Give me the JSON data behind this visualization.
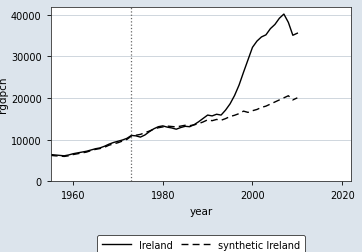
{
  "title": "",
  "xlabel": "year",
  "ylabel": "rgdpch",
  "xlim": [
    1955,
    2022
  ],
  "ylim": [
    0,
    42000
  ],
  "yticks": [
    0,
    10000,
    20000,
    30000,
    40000
  ],
  "xticks": [
    1960,
    1980,
    2000,
    2020
  ],
  "vline_x": 1973,
  "fig_background": "#dce4ec",
  "plot_background": "#ffffff",
  "grid_color": "#c8d0d8",
  "ireland_color": "#000000",
  "synthetic_color": "#000000",
  "ireland_data": {
    "years": [
      1955,
      1956,
      1957,
      1958,
      1959,
      1960,
      1961,
      1962,
      1963,
      1964,
      1965,
      1966,
      1967,
      1968,
      1969,
      1970,
      1971,
      1972,
      1973,
      1974,
      1975,
      1976,
      1977,
      1978,
      1979,
      1980,
      1981,
      1982,
      1983,
      1984,
      1985,
      1986,
      1987,
      1988,
      1989,
      1990,
      1991,
      1992,
      1993,
      1994,
      1995,
      1996,
      1997,
      1998,
      1999,
      2000,
      2001,
      2002,
      2003,
      2004,
      2005,
      2006,
      2007,
      2008,
      2009,
      2010
    ],
    "values": [
      6400,
      6300,
      6200,
      6100,
      6300,
      6600,
      6800,
      7000,
      7200,
      7500,
      7800,
      8000,
      8400,
      8900,
      9300,
      9600,
      9900,
      10300,
      11000,
      10900,
      10600,
      11100,
      11900,
      12600,
      13100,
      13300,
      13000,
      12800,
      12500,
      12900,
      13200,
      13100,
      13600,
      14300,
      15100,
      15900,
      15700,
      16100,
      15900,
      17100,
      18600,
      20600,
      23100,
      26200,
      29200,
      32200,
      33700,
      34700,
      35200,
      36700,
      37700,
      39200,
      40200,
      38200,
      35100,
      35600
    ]
  },
  "synthetic_data": {
    "years": [
      1955,
      1956,
      1957,
      1958,
      1959,
      1960,
      1961,
      1962,
      1963,
      1964,
      1965,
      1966,
      1967,
      1968,
      1969,
      1970,
      1971,
      1972,
      1973,
      1974,
      1975,
      1976,
      1977,
      1978,
      1979,
      1980,
      1981,
      1982,
      1983,
      1984,
      1985,
      1986,
      1987,
      1988,
      1989,
      1990,
      1991,
      1992,
      1993,
      1994,
      1995,
      1996,
      1997,
      1998,
      1999,
      2000,
      2001,
      2002,
      2003,
      2004,
      2005,
      2006,
      2007,
      2008,
      2009,
      2010
    ],
    "values": [
      6200,
      6100,
      6050,
      5950,
      6100,
      6400,
      6600,
      6800,
      7000,
      7350,
      7650,
      7850,
      8150,
      8650,
      8950,
      9250,
      9650,
      10050,
      10850,
      11050,
      11250,
      11650,
      12050,
      12550,
      12850,
      13050,
      13250,
      13150,
      13050,
      13250,
      13450,
      13350,
      13550,
      13850,
      14250,
      14750,
      14550,
      14850,
      14650,
      15050,
      15550,
      15850,
      16250,
      16850,
      16550,
      16950,
      17250,
      17750,
      18050,
      18550,
      19050,
      19550,
      20050,
      20550,
      19550,
      20050
    ]
  },
  "legend_ireland": "Ireland",
  "legend_synthetic": "synthetic Ireland"
}
